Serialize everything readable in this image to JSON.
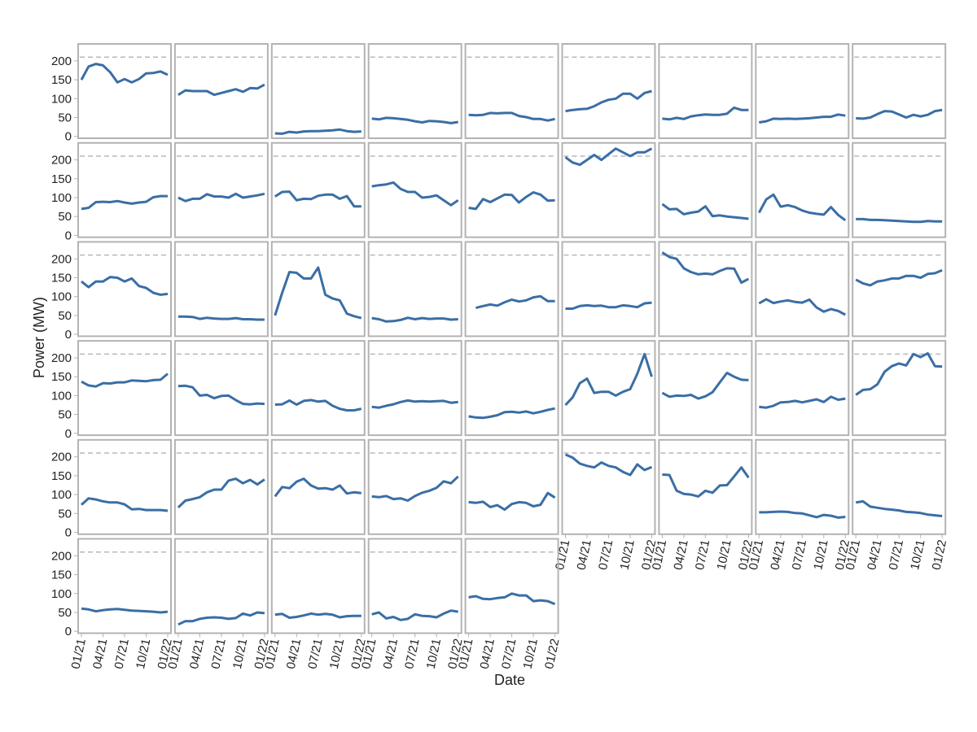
{
  "chart_data": {
    "type": "line",
    "x_label": "Date",
    "y_label": "Power (MW)",
    "x": [
      "2021-01",
      "2021-02",
      "2021-03",
      "2021-04",
      "2021-05",
      "2021-06",
      "2021-07",
      "2021-08",
      "2021-09",
      "2021-10",
      "2021-11",
      "2021-12",
      "2022-01"
    ],
    "xlim": [
      "2021-01",
      "2022-01"
    ],
    "xticks": [
      {
        "value": "2021-01",
        "label": "01/21"
      },
      {
        "value": "2021-04",
        "label": "04/21"
      },
      {
        "value": "2021-07",
        "label": "07/21"
      },
      {
        "value": "2021-10",
        "label": "10/21"
      },
      {
        "value": "2022-01",
        "label": "01/22"
      }
    ],
    "ylim": [
      -5,
      245
    ],
    "yticks": [
      0,
      50,
      100,
      150,
      200
    ],
    "reference_line": 210,
    "color": "#3a6ea5",
    "grid": false,
    "columns": 9,
    "series": [
      {
        "values": [
          150,
          185,
          192,
          188,
          170,
          143,
          152,
          143,
          152,
          167,
          168,
          172,
          163
        ]
      },
      {
        "values": [
          110,
          122,
          120,
          120,
          120,
          110,
          115,
          120,
          125,
          118,
          128,
          127,
          137
        ]
      },
      {
        "values": [
          8,
          7,
          12,
          10,
          13,
          14,
          14,
          15,
          16,
          18,
          14,
          12,
          13
        ]
      },
      {
        "values": [
          47,
          45,
          49,
          48,
          46,
          44,
          40,
          37,
          41,
          40,
          38,
          35,
          38
        ]
      },
      {
        "values": [
          57,
          56,
          57,
          62,
          61,
          62,
          62,
          54,
          51,
          46,
          46,
          42,
          46
        ]
      },
      {
        "values": [
          67,
          70,
          72,
          73,
          80,
          90,
          97,
          100,
          113,
          113,
          100,
          115,
          120
        ]
      },
      {
        "values": [
          47,
          45,
          49,
          46,
          53,
          56,
          58,
          57,
          57,
          60,
          76,
          70,
          70
        ]
      },
      {
        "values": [
          37,
          40,
          47,
          46,
          47,
          46,
          47,
          48,
          50,
          52,
          52,
          58,
          55
        ]
      },
      {
        "values": [
          48,
          47,
          50,
          59,
          67,
          66,
          58,
          50,
          57,
          53,
          57,
          67,
          70
        ]
      },
      {
        "values": [
          70,
          73,
          88,
          89,
          88,
          91,
          87,
          84,
          87,
          89,
          101,
          104,
          104
        ]
      },
      {
        "values": [
          100,
          91,
          97,
          97,
          109,
          103,
          103,
          100,
          110,
          100,
          103,
          106,
          110
        ]
      },
      {
        "values": [
          103,
          115,
          116,
          93,
          97,
          96,
          105,
          108,
          108,
          97,
          104,
          77,
          77
        ]
      },
      {
        "values": [
          130,
          133,
          135,
          140,
          123,
          115,
          115,
          100,
          102,
          106,
          93,
          80,
          93
        ]
      },
      {
        "values": [
          73,
          70,
          96,
          88,
          98,
          108,
          107,
          87,
          102,
          114,
          108,
          92,
          93
        ]
      },
      {
        "values": [
          207,
          193,
          187,
          200,
          213,
          200,
          215,
          230,
          220,
          210,
          220,
          220,
          230
        ]
      },
      {
        "values": [
          83,
          69,
          70,
          56,
          60,
          63,
          77,
          51,
          53,
          50,
          48,
          46,
          44
        ]
      },
      {
        "values": [
          60,
          95,
          108,
          76,
          80,
          75,
          66,
          60,
          57,
          55,
          75,
          54,
          40
        ]
      },
      {
        "values": [
          43,
          43,
          41,
          41,
          40,
          39,
          38,
          37,
          36,
          36,
          38,
          37,
          37
        ]
      },
      {
        "values": [
          140,
          125,
          140,
          140,
          152,
          150,
          140,
          148,
          128,
          123,
          110,
          105,
          107
        ]
      },
      {
        "values": [
          47,
          47,
          46,
          41,
          44,
          42,
          41,
          41,
          43,
          40,
          40,
          39,
          39
        ]
      },
      {
        "values": [
          50,
          110,
          165,
          163,
          148,
          148,
          177,
          105,
          95,
          90,
          55,
          48,
          43
        ]
      },
      {
        "values": [
          43,
          40,
          34,
          35,
          38,
          44,
          40,
          43,
          41,
          42,
          42,
          39,
          40
        ]
      },
      {
        "values": [
          null,
          70,
          75,
          79,
          76,
          85,
          92,
          87,
          90,
          98,
          101,
          88,
          88
        ]
      },
      {
        "values": [
          68,
          68,
          75,
          77,
          75,
          76,
          72,
          72,
          77,
          75,
          72,
          82,
          84
        ]
      },
      {
        "values": [
          217,
          205,
          200,
          175,
          165,
          159,
          161,
          159,
          168,
          175,
          174,
          137,
          147
        ]
      },
      {
        "values": [
          82,
          93,
          83,
          87,
          90,
          86,
          84,
          92,
          71,
          60,
          67,
          62,
          52
        ]
      },
      {
        "values": [
          145,
          135,
          130,
          140,
          143,
          148,
          148,
          155,
          155,
          150,
          160,
          162,
          170
        ]
      },
      {
        "values": [
          137,
          127,
          124,
          133,
          132,
          135,
          135,
          140,
          139,
          138,
          141,
          142,
          158
        ]
      },
      {
        "values": [
          125,
          126,
          122,
          100,
          102,
          93,
          99,
          100,
          88,
          78,
          77,
          79,
          78
        ]
      },
      {
        "values": [
          76,
          77,
          87,
          76,
          86,
          88,
          84,
          86,
          73,
          65,
          61,
          61,
          65
        ]
      },
      {
        "values": [
          70,
          68,
          73,
          77,
          83,
          87,
          84,
          85,
          84,
          85,
          86,
          81,
          83
        ]
      },
      {
        "values": [
          45,
          42,
          41,
          44,
          48,
          56,
          57,
          55,
          58,
          53,
          57,
          62,
          66
        ]
      },
      {
        "values": [
          75,
          95,
          133,
          145,
          107,
          110,
          110,
          100,
          110,
          117,
          158,
          210,
          150
        ]
      },
      {
        "values": [
          107,
          97,
          100,
          99,
          102,
          92,
          98,
          109,
          135,
          160,
          150,
          142,
          141
        ]
      },
      {
        "values": [
          70,
          68,
          73,
          82,
          83,
          86,
          82,
          86,
          90,
          83,
          97,
          89,
          92
        ]
      },
      {
        "values": [
          102,
          115,
          117,
          130,
          163,
          178,
          185,
          180,
          210,
          202,
          212,
          178,
          177
        ]
      },
      {
        "values": [
          73,
          90,
          87,
          82,
          79,
          79,
          74,
          61,
          62,
          59,
          59,
          59,
          57
        ]
      },
      {
        "values": [
          66,
          84,
          88,
          93,
          106,
          113,
          113,
          137,
          142,
          130,
          139,
          127,
          140
        ]
      },
      {
        "values": [
          95,
          120,
          117,
          134,
          142,
          124,
          116,
          117,
          113,
          124,
          103,
          106,
          104
        ]
      },
      {
        "values": [
          95,
          93,
          96,
          88,
          90,
          84,
          96,
          105,
          110,
          118,
          135,
          130,
          148
        ]
      },
      {
        "values": [
          80,
          78,
          81,
          67,
          72,
          60,
          75,
          80,
          78,
          69,
          73,
          104,
          92
        ]
      },
      {
        "values": [
          206,
          198,
          182,
          176,
          172,
          185,
          176,
          172,
          160,
          152,
          180,
          165,
          173
        ]
      },
      {
        "values": [
          153,
          152,
          110,
          102,
          100,
          95,
          110,
          105,
          124,
          125,
          148,
          172,
          145
        ]
      },
      {
        "values": [
          53,
          53,
          54,
          55,
          54,
          51,
          50,
          45,
          40,
          46,
          44,
          39,
          41
        ]
      },
      {
        "values": [
          79,
          82,
          68,
          65,
          62,
          60,
          58,
          54,
          53,
          51,
          47,
          45,
          43
        ]
      },
      {
        "values": [
          60,
          58,
          53,
          56,
          58,
          59,
          57,
          55,
          54,
          53,
          52,
          50,
          52
        ]
      },
      {
        "values": [
          18,
          27,
          27,
          33,
          36,
          37,
          36,
          33,
          35,
          47,
          42,
          50,
          48
        ]
      },
      {
        "values": [
          44,
          46,
          36,
          38,
          42,
          47,
          44,
          46,
          44,
          37,
          40,
          41,
          41
        ]
      },
      {
        "values": [
          45,
          50,
          34,
          38,
          30,
          33,
          45,
          41,
          40,
          37,
          47,
          55,
          52
        ]
      },
      {
        "values": [
          90,
          93,
          86,
          85,
          88,
          90,
          100,
          95,
          95,
          80,
          82,
          80,
          72
        ]
      }
    ]
  }
}
